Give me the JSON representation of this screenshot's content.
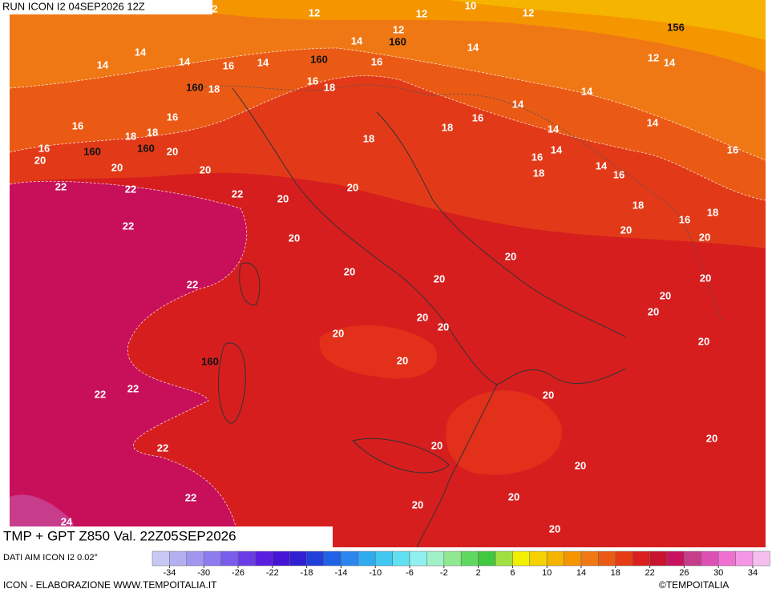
{
  "header": {
    "run": "RUN ICON I2 04SEP2026 12Z"
  },
  "footer": {
    "title": "TMP + GPT Z850 Val. 22Z05SEP2026",
    "source": "DATI AIM ICON I2 0.02°",
    "credit": "ICON - ELABORAZIONE WWW.TEMPOITALIA.IT",
    "copyright": "©TEMPOITALIA"
  },
  "colorbar": {
    "ticks": [
      -34,
      -30,
      -26,
      -22,
      -18,
      -14,
      -10,
      -6,
      -2,
      2,
      6,
      10,
      14,
      18,
      22,
      26,
      30,
      34
    ],
    "colors": [
      "#c8c8f5",
      "#b4b0f0",
      "#a096f0",
      "#8c7cf0",
      "#7a5cec",
      "#6a3ce6",
      "#5a1ee0",
      "#4614d6",
      "#3020d2",
      "#2040dc",
      "#2062e6",
      "#2c86f0",
      "#30aaf0",
      "#40c8f0",
      "#60e0f0",
      "#90f0f0",
      "#a0f0c8",
      "#90e890",
      "#60d860",
      "#40c840",
      "#a0e040",
      "#f0f000",
      "#f5d200",
      "#f5b400",
      "#f59600",
      "#f07814",
      "#eb5a14",
      "#e63c14",
      "#dc1e1e",
      "#c8142d",
      "#c81460",
      "#c83c8c",
      "#dc50b4",
      "#f070d2",
      "#f596e6",
      "#f5beef"
    ]
  },
  "contour_labels": [
    14,
    14,
    14,
    16,
    14,
    12,
    14,
    16,
    160,
    160,
    12,
    12,
    10,
    12,
    156,
    14,
    12,
    14,
    14,
    14,
    160,
    18,
    16,
    18,
    16,
    16,
    18,
    18,
    160,
    20,
    160,
    16,
    20,
    20,
    20,
    18,
    18,
    16,
    14,
    14,
    16,
    16,
    14,
    14,
    16,
    18,
    22,
    22,
    22,
    20,
    20,
    18,
    16,
    18,
    20,
    20,
    22,
    20,
    20,
    20,
    20,
    20,
    22,
    20,
    20,
    20,
    20,
    20,
    20,
    160,
    20,
    22,
    22,
    20,
    20,
    20,
    22,
    20,
    22,
    20,
    20,
    20,
    24,
    2
  ]
}
